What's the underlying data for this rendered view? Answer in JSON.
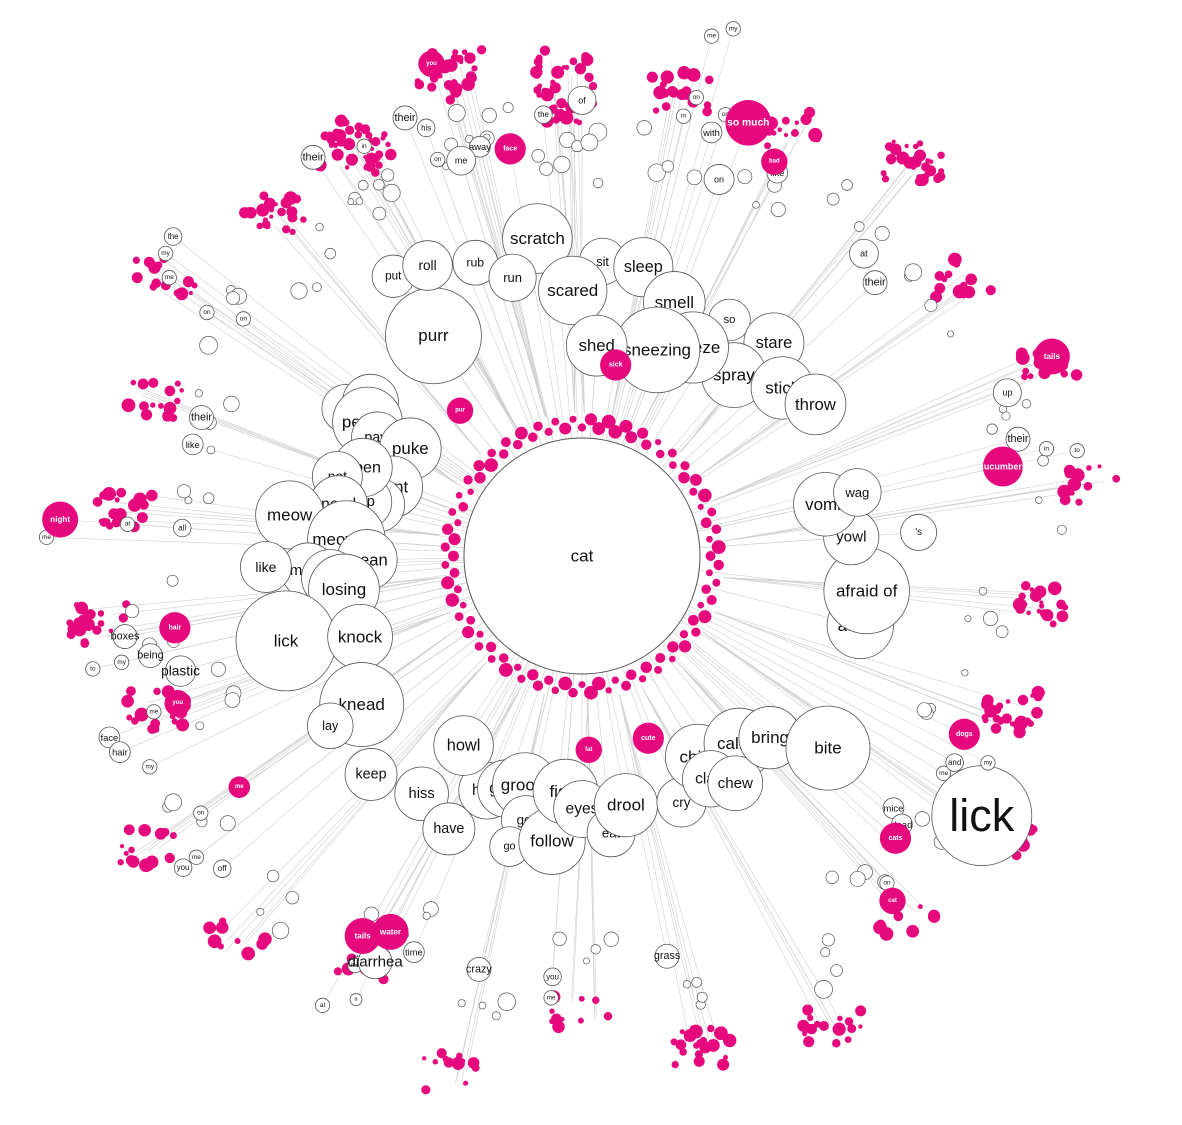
{
  "colors": {
    "background": "#ffffff",
    "edge": "#cfcfcf",
    "node_fill": "#ffffff",
    "node_stroke": "#555555",
    "highlight": "#e6097e"
  },
  "root": {
    "label": "cat"
  },
  "labeled_nodes": [
    {
      "label": "of",
      "angle": -90,
      "r": 0.8
    },
    {
      "label": "rub",
      "angle": -110,
      "r": 0.46
    },
    {
      "label": "scratch",
      "angle": -98,
      "r": 0.48
    },
    {
      "label": "sit",
      "angle": -86,
      "r": 0.42
    },
    {
      "label": "sleep",
      "angle": -78,
      "r": 0.42
    },
    {
      "label": "scared",
      "angle": -92,
      "r": 0.35
    },
    {
      "label": "smell",
      "angle": -70,
      "r": 0.36
    },
    {
      "label": "so",
      "angle": -58,
      "r": 0.38
    },
    {
      "label": "stare",
      "angle": -48,
      "r": 0.4
    },
    {
      "label": "spray",
      "angle": -50,
      "r": 0.28
    },
    {
      "label": "sneeze",
      "angle": -62,
      "r": 0.28
    },
    {
      "label": "sneezing",
      "angle": -70,
      "r": 0.24
    },
    {
      "label": "shed",
      "angle": -86,
      "r": 0.22
    },
    {
      "label": "stick",
      "angle": -40,
      "r": 0.34
    },
    {
      "label": "throw",
      "angle": -33,
      "r": 0.38
    },
    {
      "label": "purr",
      "angle": -124,
      "r": 0.35
    },
    {
      "label": "put",
      "angle": -124,
      "r": 0.52
    },
    {
      "label": "roll",
      "angle": -118,
      "r": 0.5
    },
    {
      "label": "run",
      "angle": -104,
      "r": 0.4
    },
    {
      "label": "pee",
      "angle": -148,
      "r": 0.38
    },
    {
      "label": "poop",
      "angle": -144,
      "r": 0.34
    },
    {
      "label": "peeing",
      "angle": -148,
      "r": 0.32
    },
    {
      "label": "paw",
      "angle": -150,
      "r": 0.28
    },
    {
      "label": "puke",
      "angle": -148,
      "r": 0.2
    },
    {
      "label": "pant",
      "angle": -160,
      "r": 0.2
    },
    {
      "label": "pad",
      "angle": -166,
      "r": 0.22
    },
    {
      "label": "nip",
      "angle": -166,
      "r": 0.25
    },
    {
      "label": "open",
      "angle": -158,
      "r": 0.28
    },
    {
      "label": "not",
      "angle": -162,
      "r": 0.33
    },
    {
      "label": "need",
      "angle": -168,
      "r": 0.31
    },
    {
      "label": "meow",
      "angle": -172,
      "r": 0.42
    },
    {
      "label": "meowing",
      "angle": -176,
      "r": 0.28
    },
    {
      "label": "mean",
      "angle": -181,
      "r": 0.23
    },
    {
      "label": "make",
      "angle": -183,
      "r": 0.37
    },
    {
      "label": "love",
      "angle": -185,
      "r": 0.32
    },
    {
      "label": "losing",
      "angle": -188,
      "r": 0.29
    },
    {
      "label": "like",
      "angle": -182,
      "r": 0.47
    },
    {
      "label": "lick",
      "angle": -196,
      "r": 0.45
    },
    {
      "label": "knock",
      "angle": -200,
      "r": 0.28
    },
    {
      "label": "knead",
      "angle": -214,
      "r": 0.35
    },
    {
      "label": "lay",
      "angle": -214,
      "r": 0.44
    },
    {
      "label": "keep",
      "angle": -226,
      "r": 0.44
    },
    {
      "label": "hiss",
      "angle": -236,
      "r": 0.4
    },
    {
      "label": "have",
      "angle": -244,
      "r": 0.44
    },
    {
      "label": "hate",
      "angle": -248,
      "r": 0.32
    },
    {
      "label": "howl",
      "angle": -238,
      "r": 0.25
    },
    {
      "label": "grow",
      "angle": -252,
      "r": 0.3
    },
    {
      "label": "groom",
      "angle": -256,
      "r": 0.28
    },
    {
      "label": "get",
      "angle": -258,
      "r": 0.36
    },
    {
      "label": "go",
      "angle": -256,
      "r": 0.43
    },
    {
      "label": "follow",
      "angle": -264,
      "r": 0.4
    },
    {
      "label": "fight",
      "angle": -266,
      "r": 0.28
    },
    {
      "label": "eyes",
      "angle": -270,
      "r": 0.32
    },
    {
      "label": "eat",
      "angle": -276,
      "r": 0.38
    },
    {
      "label": "drool",
      "angle": -280,
      "r": 0.32
    },
    {
      "label": "cry",
      "angle": -292,
      "r": 0.35
    },
    {
      "label": "chirp",
      "angle": -300,
      "r": 0.27
    },
    {
      "label": "called",
      "angle": -310,
      "r": 0.3
    },
    {
      "label": "claw",
      "angle": -300,
      "r": 0.33
    },
    {
      "label": "chew",
      "angle": -304,
      "r": 0.37
    },
    {
      "label": "bring",
      "angle": -316,
      "r": 0.34
    },
    {
      "label": "bite",
      "angle": -322,
      "r": 0.46
    },
    {
      "label": "attack",
      "angle": -346,
      "r": 0.4
    },
    {
      "label": "afraid of",
      "angle": -353,
      "r": 0.4
    },
    {
      "label": "yowl",
      "angle": -364,
      "r": 0.36
    },
    {
      "label": "vomit",
      "angle": -372,
      "r": 0.31
    },
    {
      "label": "wag",
      "angle": -373,
      "r": 0.39
    },
    {
      "label": "'s",
      "angle": -364,
      "r": 0.52
    },
    {
      "label": "up",
      "angle": -381,
      "r": 0.8
    },
    {
      "label": "at",
      "angle": -407,
      "r": 0.7
    },
    {
      "label": "on",
      "angle": -430,
      "r": 0.67
    },
    {
      "label": "me",
      "angle": -467,
      "r": 0.7
    }
  ],
  "pink_labels": [
    {
      "label": "sick",
      "angle": -80,
      "r": 0.18
    },
    {
      "label": "pur",
      "angle": -130,
      "r": 0.17
    },
    {
      "label": "cute",
      "angle": -290,
      "r": 0.18
    },
    {
      "label": "fat",
      "angle": -272,
      "r": 0.18
    },
    {
      "label": "cucumbers",
      "angle": -372,
      "r": 0.74
    },
    {
      "label": "dogs",
      "angle": -335,
      "r": 0.72
    },
    {
      "label": "so much",
      "angle": -69,
      "r": 0.82
    },
    {
      "label": "bad",
      "angle": -64,
      "r": 0.76
    },
    {
      "label": "face",
      "angle": -100,
      "r": 0.7
    },
    {
      "label": "you",
      "angle": -107,
      "r": 0.94
    },
    {
      "label": "hair",
      "angle": -190,
      "r": 0.7
    },
    {
      "label": "you",
      "angle": -200,
      "r": 0.74
    },
    {
      "label": "tails",
      "angle": -240,
      "r": 0.76
    },
    {
      "label": "water",
      "angle": -243,
      "r": 0.72
    },
    {
      "label": "me",
      "angle": -214,
      "r": 0.7
    },
    {
      "label": "cats",
      "angle": -318,
      "r": 0.72
    },
    {
      "label": "cat",
      "angle": -312,
      "r": 0.82
    },
    {
      "label": "night",
      "angle": -176,
      "r": 0.96
    },
    {
      "label": "tails",
      "angle": -383,
      "r": 0.93
    }
  ],
  "small_labels": [
    {
      "label": "their",
      "angle": -124,
      "r": 0.86
    },
    {
      "label": "in",
      "angle": -118,
      "r": 0.82
    },
    {
      "label": "their",
      "angle": -112,
      "r": 0.84
    },
    {
      "label": "his",
      "angle": -110,
      "r": 0.8
    },
    {
      "label": "away",
      "angle": -104,
      "r": 0.72
    },
    {
      "label": "on",
      "angle": -110,
      "r": 0.72
    },
    {
      "label": "the",
      "angle": -95,
      "r": 0.77
    },
    {
      "label": "on",
      "angle": -76,
      "r": 0.84
    },
    {
      "label": "on",
      "angle": -72,
      "r": 0.82
    },
    {
      "label": "in",
      "angle": -77,
      "r": 0.79
    },
    {
      "label": "with",
      "angle": -73,
      "r": 0.77
    },
    {
      "label": "like",
      "angle": -63,
      "r": 0.74
    },
    {
      "label": "me",
      "angle": -76,
      "r": 0.99
    },
    {
      "label": "my",
      "angle": -74,
      "r": 1.02
    },
    {
      "label": "on",
      "angle": -147,
      "r": 0.78
    },
    {
      "label": "on",
      "angle": -145,
      "r": 0.7
    },
    {
      "label": "my",
      "angle": -144,
      "r": 0.94
    },
    {
      "label": "the",
      "angle": -142,
      "r": 0.95
    },
    {
      "label": "me",
      "angle": -146,
      "r": 0.9
    },
    {
      "label": "their",
      "angle": -160,
      "r": 0.68
    },
    {
      "label": "like",
      "angle": -164,
      "r": 0.68
    },
    {
      "label": "me",
      "angle": -178,
      "r": 0.99
    },
    {
      "label": "at",
      "angle": -176,
      "r": 0.8
    },
    {
      "label": "all",
      "angle": -176,
      "r": 0.67
    },
    {
      "label": "boxes",
      "angle": -190,
      "r": 0.82
    },
    {
      "label": "to",
      "angle": -193,
      "r": 0.91
    },
    {
      "label": "my",
      "angle": -193,
      "r": 0.84
    },
    {
      "label": "being",
      "angle": -193,
      "r": 0.77
    },
    {
      "label": "plastic",
      "angle": -196,
      "r": 0.71
    },
    {
      "label": "me",
      "angle": -200,
      "r": 0.8
    },
    {
      "label": "face",
      "angle": -201,
      "r": 0.92
    },
    {
      "label": "hair",
      "angle": -203,
      "r": 0.91
    },
    {
      "label": "my",
      "angle": -206,
      "r": 0.86
    },
    {
      "label": "on",
      "angle": -214,
      "r": 0.81
    },
    {
      "label": "you",
      "angle": -218,
      "r": 0.92
    },
    {
      "label": "me",
      "angle": -218,
      "r": 0.88
    },
    {
      "label": "off",
      "angle": -221,
      "r": 0.85
    },
    {
      "label": "at",
      "angle": -240,
      "r": 0.95
    },
    {
      "label": "a",
      "angle": -243,
      "r": 0.9
    },
    {
      "label": "me",
      "angle": -241,
      "r": 0.83
    },
    {
      "label": "diarrhea",
      "angle": -243,
      "r": 0.8
    },
    {
      "label": "time",
      "angle": -247,
      "r": 0.74
    },
    {
      "label": "crazy",
      "angle": -256,
      "r": 0.73
    },
    {
      "label": "you",
      "angle": -266,
      "r": 0.72
    },
    {
      "label": "me",
      "angle": -266,
      "r": 0.77
    },
    {
      "label": "grass",
      "angle": -282,
      "r": 0.69
    },
    {
      "label": "mice",
      "angle": -321,
      "r": 0.67
    },
    {
      "label": "dead",
      "angle": -320,
      "r": 0.71
    },
    {
      "label": "a",
      "angle": -317,
      "r": 0.71
    },
    {
      "label": "on",
      "angle": -313,
      "r": 0.78
    },
    {
      "label": "me",
      "angle": -329,
      "r": 0.72
    },
    {
      "label": "lick",
      "angle": -327,
      "r": 0.85
    },
    {
      "label": "my",
      "angle": -333,
      "r": 0.8
    },
    {
      "label": "and",
      "angle": -331,
      "r": 0.73
    },
    {
      "label": "their",
      "angle": -375,
      "r": 0.79
    },
    {
      "label": "in",
      "angle": -373,
      "r": 0.85
    },
    {
      "label": "to",
      "angle": -372,
      "r": 0.92
    },
    {
      "label": "their",
      "angle": -403,
      "r": 0.67
    }
  ]
}
